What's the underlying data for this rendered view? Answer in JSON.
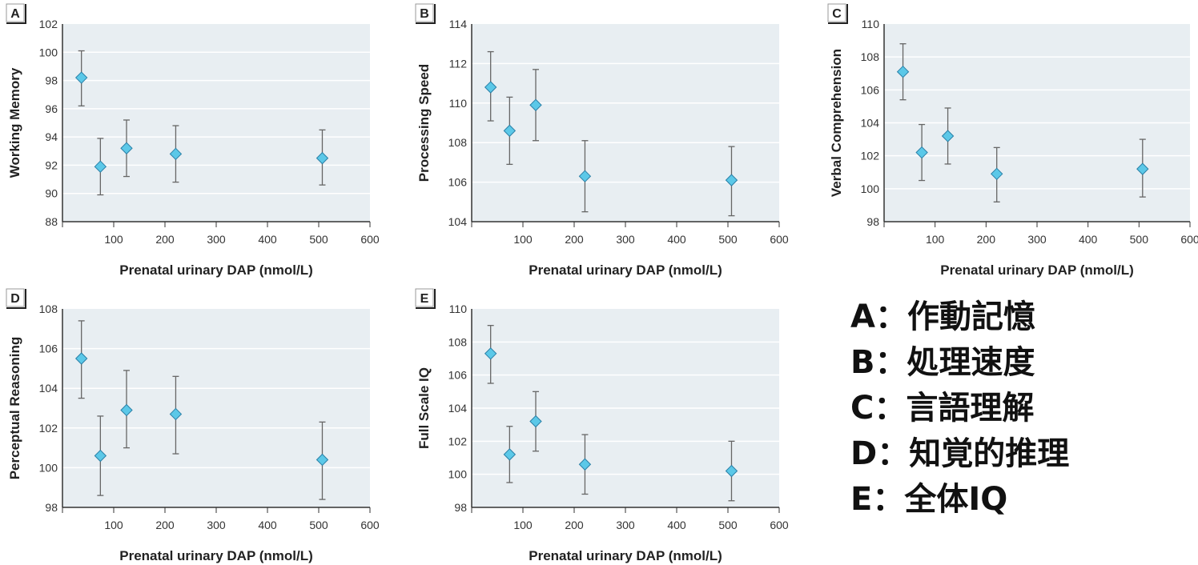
{
  "chart_data": [
    {
      "type": "scatter",
      "panel": "A",
      "xlabel": "Prenatal urinary DAP (nmol/L)",
      "ylabel": "Working Memory",
      "xlim": [
        0,
        600
      ],
      "ylim": [
        88,
        102
      ],
      "xticks": [
        100,
        200,
        300,
        400,
        500,
        600
      ],
      "yticks": [
        88,
        90,
        92,
        94,
        96,
        98,
        100,
        102
      ],
      "grid": true,
      "x": [
        37,
        74,
        125,
        221,
        507
      ],
      "y": [
        98.2,
        91.9,
        93.2,
        92.8,
        92.5
      ],
      "err_low": [
        96.2,
        89.9,
        91.2,
        90.8,
        90.6
      ],
      "err_high": [
        100.1,
        93.9,
        95.2,
        94.8,
        94.5
      ]
    },
    {
      "type": "scatter",
      "panel": "B",
      "xlabel": "Prenatal urinary DAP (nmol/L)",
      "ylabel": "Processing Speed",
      "xlim": [
        0,
        600
      ],
      "ylim": [
        104,
        114
      ],
      "xticks": [
        100,
        200,
        300,
        400,
        500,
        600
      ],
      "yticks": [
        104,
        106,
        108,
        110,
        112,
        114
      ],
      "grid": true,
      "x": [
        37,
        74,
        125,
        221,
        507
      ],
      "y": [
        110.8,
        108.6,
        109.9,
        106.3,
        106.1
      ],
      "err_low": [
        109.1,
        106.9,
        108.1,
        104.5,
        104.3
      ],
      "err_high": [
        112.6,
        110.3,
        111.7,
        108.1,
        107.8
      ]
    },
    {
      "type": "scatter",
      "panel": "C",
      "xlabel": "Prenatal urinary DAP (nmol/L)",
      "ylabel": "Verbal Comprehension",
      "xlim": [
        0,
        600
      ],
      "ylim": [
        98,
        110
      ],
      "xticks": [
        100,
        200,
        300,
        400,
        500,
        600
      ],
      "yticks": [
        98,
        100,
        102,
        104,
        106,
        108,
        110
      ],
      "grid": true,
      "x": [
        37,
        74,
        125,
        221,
        507
      ],
      "y": [
        107.1,
        102.2,
        103.2,
        100.9,
        101.2
      ],
      "err_low": [
        105.4,
        100.5,
        101.5,
        99.2,
        99.5
      ],
      "err_high": [
        108.8,
        103.9,
        104.9,
        102.5,
        103.0
      ]
    },
    {
      "type": "scatter",
      "panel": "D",
      "xlabel": "Prenatal urinary DAP (nmol/L)",
      "ylabel": "Perceptual Reasoning",
      "xlim": [
        0,
        600
      ],
      "ylim": [
        98,
        108
      ],
      "xticks": [
        100,
        200,
        300,
        400,
        500,
        600
      ],
      "yticks": [
        98,
        100,
        102,
        104,
        106,
        108
      ],
      "grid": true,
      "x": [
        37,
        74,
        125,
        221,
        507
      ],
      "y": [
        105.5,
        100.6,
        102.9,
        102.7,
        100.4
      ],
      "err_low": [
        103.5,
        98.6,
        101.0,
        100.7,
        98.4
      ],
      "err_high": [
        107.4,
        102.6,
        104.9,
        104.6,
        102.3
      ]
    },
    {
      "type": "scatter",
      "panel": "E",
      "xlabel": "Prenatal urinary DAP (nmol/L)",
      "ylabel": "Full Scale IQ",
      "xlim": [
        0,
        600
      ],
      "ylim": [
        98,
        110
      ],
      "xticks": [
        100,
        200,
        300,
        400,
        500,
        600
      ],
      "yticks": [
        98,
        100,
        102,
        104,
        106,
        108,
        110
      ],
      "grid": true,
      "x": [
        37,
        74,
        125,
        221,
        507
      ],
      "y": [
        107.3,
        101.2,
        103.2,
        100.6,
        100.2
      ],
      "err_low": [
        105.5,
        99.5,
        101.4,
        98.8,
        98.4
      ],
      "err_high": [
        109.0,
        102.9,
        105.0,
        102.4,
        102.0
      ]
    }
  ],
  "colors": {
    "marker": "#5bc8e8",
    "marker_edge": "#2a7fa6",
    "plot_bg": "#e8eef2",
    "errorbar": "#666666",
    "axis": "#333333"
  },
  "legend": [
    "A：作動記憶",
    "B：処理速度",
    "C：言語理解",
    "D：知覚的推理",
    "E：全体IQ"
  ]
}
